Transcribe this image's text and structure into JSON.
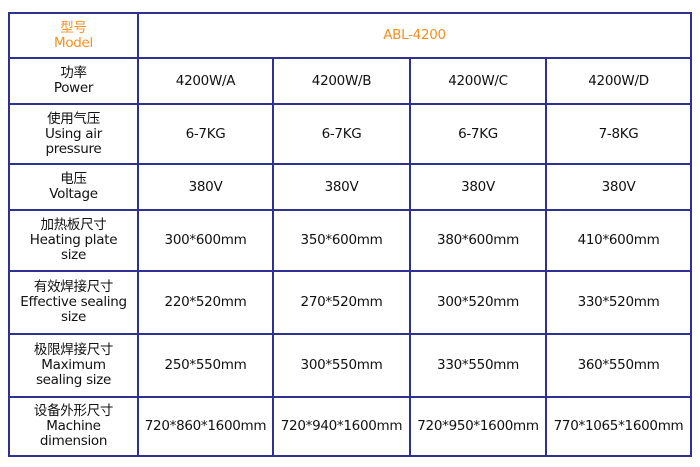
{
  "colors": {
    "border": "#2e3192",
    "accent": "#f7901e"
  },
  "header": {
    "label_cn": "型号",
    "label_en": "Model",
    "value": "ABL-4200"
  },
  "rows": [
    {
      "label_cn": "功率",
      "label_en": [
        "Power"
      ],
      "values": [
        "4200W/A",
        "4200W/B",
        "4200W/C",
        "4200W/D"
      ]
    },
    {
      "label_cn": "使用气压",
      "label_en": [
        "Using air",
        "pressure"
      ],
      "values": [
        "6-7KG",
        "6-7KG",
        "6-7KG",
        "7-8KG"
      ]
    },
    {
      "label_cn": "电压",
      "label_en": [
        "Voltage"
      ],
      "values": [
        "380V",
        "380V",
        "380V",
        "380V"
      ]
    },
    {
      "label_cn": "加热板尺寸",
      "label_en": [
        "Heating plate",
        "size"
      ],
      "values": [
        "300*600mm",
        "350*600mm",
        "380*600mm",
        "410*600mm"
      ]
    },
    {
      "label_cn": "有效焊接尺寸",
      "label_en": [
        "Effective sealing",
        "size"
      ],
      "values": [
        "220*520mm",
        "270*520mm",
        "300*520mm",
        "330*520mm"
      ]
    },
    {
      "label_cn": "极限焊接尺寸",
      "label_en": [
        "Maximum",
        "sealing size"
      ],
      "values": [
        "250*550mm",
        "300*550mm",
        "330*550mm",
        "360*550mm"
      ]
    },
    {
      "label_cn": "设备外形尺寸",
      "label_en": [
        "Machine",
        "dimension"
      ],
      "values": [
        "720*860*1600mm",
        "720*940*1600mm",
        "720*950*1600mm",
        "770*1065*1600mm"
      ]
    }
  ]
}
